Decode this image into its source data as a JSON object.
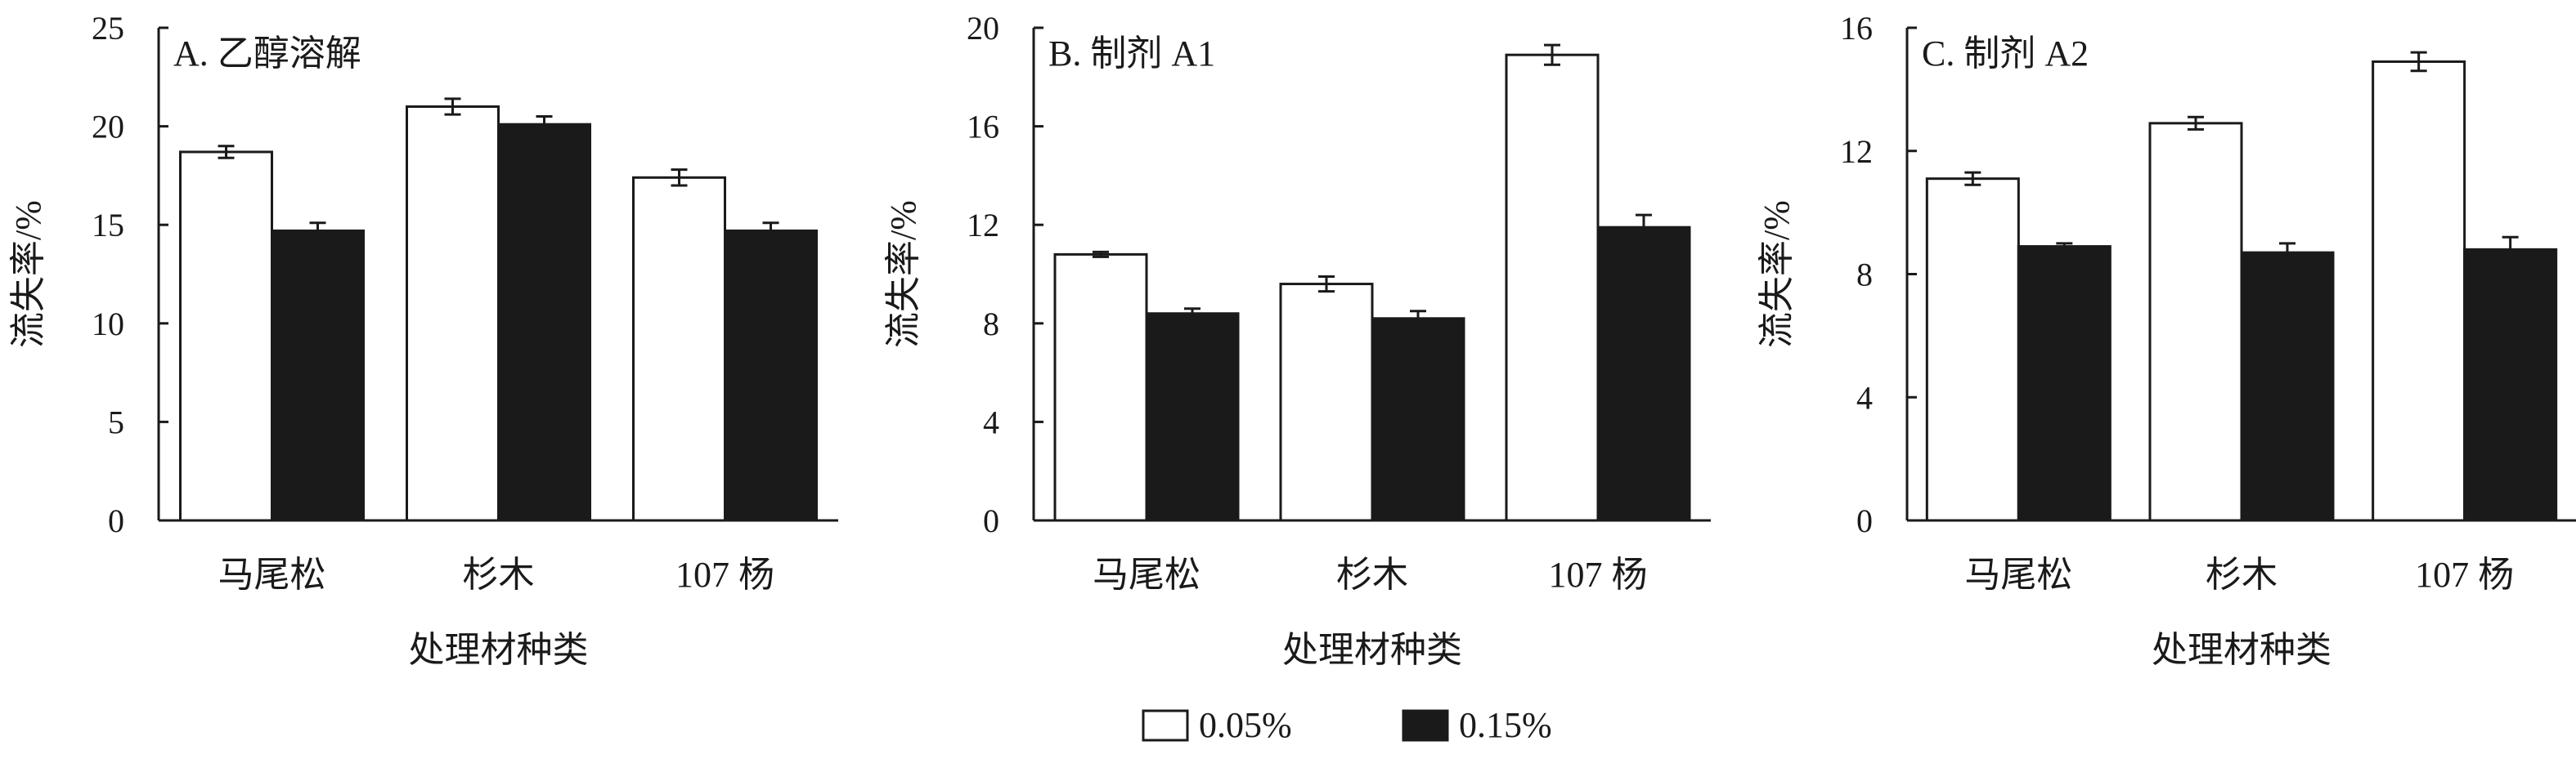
{
  "chart_data": [
    {
      "type": "bar",
      "title": "A. 乙醇溶解",
      "xlabel": "处理材种类",
      "ylabel": "流失率/%",
      "ylim": [
        0,
        25
      ],
      "yticks": [
        0,
        5,
        10,
        15,
        20,
        25
      ],
      "categories": [
        "马尾松",
        "杉木",
        "107 杨"
      ],
      "series": [
        {
          "name": "0.05%",
          "values": [
            18.7,
            21.0,
            17.4
          ],
          "errors": [
            0.3,
            0.4,
            0.4
          ]
        },
        {
          "name": "0.15%",
          "values": [
            14.7,
            20.1,
            14.7
          ],
          "errors": [
            0.4,
            0.4,
            0.4
          ]
        }
      ]
    },
    {
      "type": "bar",
      "title": "B. 制剂 A1",
      "xlabel": "处理材种类",
      "ylabel": "流失率/%",
      "ylim": [
        0,
        20
      ],
      "yticks": [
        0,
        4,
        8,
        12,
        16,
        20
      ],
      "categories": [
        "马尾松",
        "杉木",
        "107 杨"
      ],
      "series": [
        {
          "name": "0.05%",
          "values": [
            10.8,
            9.6,
            18.9
          ],
          "errors": [
            0.1,
            0.3,
            0.4
          ]
        },
        {
          "name": "0.15%",
          "values": [
            8.4,
            8.2,
            11.9
          ],
          "errors": [
            0.2,
            0.3,
            0.5
          ]
        }
      ]
    },
    {
      "type": "bar",
      "title": "C. 制剂 A2",
      "xlabel": "处理材种类",
      "ylabel": "流失率/%",
      "ylim": [
        0,
        16
      ],
      "yticks": [
        0,
        4,
        8,
        12,
        16
      ],
      "categories": [
        "马尾松",
        "杉木",
        "107 杨"
      ],
      "series": [
        {
          "name": "0.05%",
          "values": [
            11.1,
            12.9,
            14.9
          ],
          "errors": [
            0.2,
            0.2,
            0.3
          ]
        },
        {
          "name": "0.15%",
          "values": [
            8.9,
            8.7,
            8.8
          ],
          "errors": [
            0.1,
            0.3,
            0.4
          ]
        }
      ]
    }
  ],
  "legend": {
    "placement": "bottom-center",
    "items": [
      {
        "label": "0.05%",
        "fill": "#ffffff"
      },
      {
        "label": "0.15%",
        "fill": "#1a1a1a"
      }
    ]
  },
  "colors": {
    "series_0": "#ffffff",
    "series_1": "#1a1a1a",
    "axis": "#1a1a1a"
  }
}
